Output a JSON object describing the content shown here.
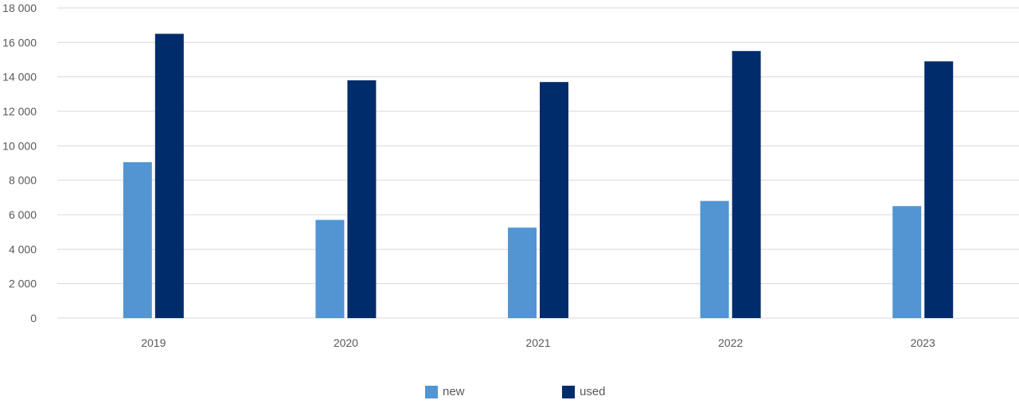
{
  "chart_data": {
    "type": "bar",
    "categories": [
      "2019",
      "2020",
      "2021",
      "2022",
      "2023"
    ],
    "series": [
      {
        "name": "new",
        "color": "#5295d2",
        "values": [
          9050,
          5700,
          5250,
          6800,
          6500
        ]
      },
      {
        "name": "used",
        "color": "#002c6c",
        "values": [
          16500,
          13800,
          13700,
          15500,
          14900
        ]
      }
    ],
    "ylim": [
      0,
      18000
    ],
    "yticks": [
      0,
      2000,
      4000,
      6000,
      8000,
      10000,
      12000,
      14000,
      16000,
      18000
    ],
    "ytick_labels": [
      "0",
      "2 000",
      "4 000",
      "6 000",
      "8 000",
      "10 000",
      "12 000",
      "14 000",
      "16 000",
      "18 000"
    ],
    "grid": true,
    "legend_position": "bottom",
    "title": "",
    "xlabel": "",
    "ylabel": ""
  }
}
